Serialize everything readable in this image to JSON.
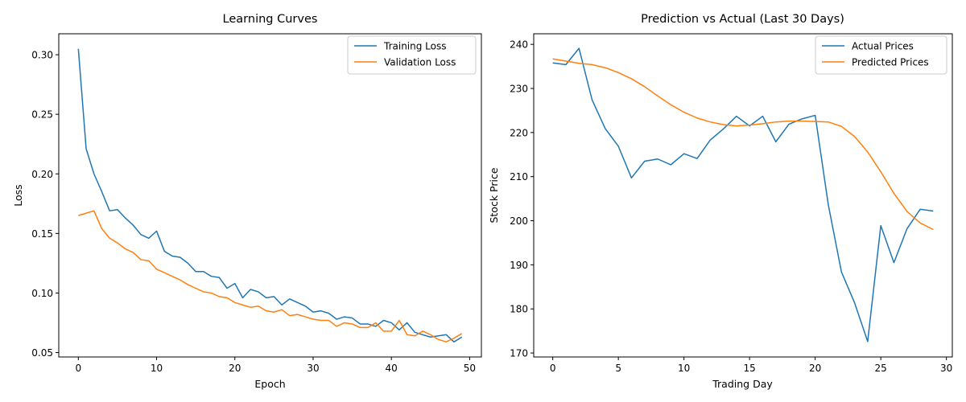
{
  "figure": {
    "background": "#ffffff"
  },
  "chart_data": [
    {
      "type": "line",
      "title": "Learning Curves",
      "xlabel": "Epoch",
      "ylabel": "Loss",
      "xlim": [
        -2.5,
        51.5
      ],
      "ylim": [
        0.0463,
        0.3176
      ],
      "xticks": [
        0,
        10,
        20,
        30,
        40,
        50
      ],
      "yticks": [
        0.05,
        0.1,
        0.15,
        0.2,
        0.25,
        0.3
      ],
      "ytick_labels": [
        "0.05",
        "0.10",
        "0.15",
        "0.20",
        "0.25",
        "0.30"
      ],
      "legend": "top-right",
      "grid": false,
      "x": [
        0,
        1,
        2,
        3,
        4,
        5,
        6,
        7,
        8,
        9,
        10,
        11,
        12,
        13,
        14,
        15,
        16,
        17,
        18,
        19,
        20,
        21,
        22,
        23,
        24,
        25,
        26,
        27,
        28,
        29,
        30,
        31,
        32,
        33,
        34,
        35,
        36,
        37,
        38,
        39,
        40,
        41,
        42,
        43,
        44,
        45,
        46,
        47,
        48,
        49
      ],
      "series": [
        {
          "name": "Training Loss",
          "color": "#1f77b4",
          "values": [
            0.305,
            0.221,
            0.2,
            0.185,
            0.169,
            0.17,
            0.163,
            0.157,
            0.149,
            0.146,
            0.152,
            0.135,
            0.131,
            0.13,
            0.125,
            0.118,
            0.118,
            0.114,
            0.113,
            0.104,
            0.108,
            0.096,
            0.103,
            0.101,
            0.096,
            0.097,
            0.09,
            0.095,
            0.092,
            0.089,
            0.084,
            0.085,
            0.083,
            0.078,
            0.08,
            0.079,
            0.074,
            0.074,
            0.072,
            0.077,
            0.075,
            0.069,
            0.075,
            0.067,
            0.065,
            0.063,
            0.064,
            0.065,
            0.059,
            0.063
          ]
        },
        {
          "name": "Validation Loss",
          "color": "#ff7f0e",
          "values": [
            0.165,
            0.167,
            0.169,
            0.154,
            0.146,
            0.142,
            0.137,
            0.134,
            0.128,
            0.127,
            0.12,
            0.117,
            0.114,
            0.111,
            0.107,
            0.104,
            0.101,
            0.1,
            0.097,
            0.096,
            0.092,
            0.09,
            0.088,
            0.089,
            0.085,
            0.084,
            0.086,
            0.081,
            0.082,
            0.08,
            0.078,
            0.077,
            0.077,
            0.072,
            0.075,
            0.074,
            0.071,
            0.071,
            0.075,
            0.068,
            0.068,
            0.077,
            0.065,
            0.064,
            0.068,
            0.065,
            0.061,
            0.059,
            0.062,
            0.066
          ]
        }
      ]
    },
    {
      "type": "line",
      "title": "Prediction vs Actual (Last 30 Days)",
      "xlabel": "Trading Day",
      "ylabel": "Stock Price",
      "xlim": [
        -1.45,
        30.45
      ],
      "ylim": [
        169.1,
        242.4
      ],
      "xticks": [
        0,
        5,
        10,
        15,
        20,
        25,
        30
      ],
      "yticks": [
        170,
        180,
        190,
        200,
        210,
        220,
        230,
        240
      ],
      "ytick_labels": [
        "170",
        "180",
        "190",
        "200",
        "210",
        "220",
        "230",
        "240"
      ],
      "legend": "top-right",
      "grid": false,
      "x": [
        0,
        1,
        2,
        3,
        4,
        5,
        6,
        7,
        8,
        9,
        10,
        11,
        12,
        13,
        14,
        15,
        16,
        17,
        18,
        19,
        20,
        21,
        22,
        23,
        24,
        25,
        26,
        27,
        28,
        29
      ],
      "series": [
        {
          "name": "Actual Prices",
          "color": "#1f77b4",
          "values": [
            235.8,
            235.4,
            239.1,
            227.4,
            220.9,
            216.9,
            209.7,
            213.5,
            214.0,
            212.7,
            215.2,
            214.1,
            218.3,
            220.8,
            223.7,
            221.5,
            223.7,
            217.9,
            221.9,
            223.1,
            223.9,
            203.6,
            188.4,
            181.4,
            172.6,
            198.9,
            190.5,
            198.2,
            202.6,
            202.2
          ]
        },
        {
          "name": "Predicted Prices",
          "color": "#ff7f0e",
          "values": [
            236.7,
            236.2,
            235.7,
            235.4,
            234.7,
            233.6,
            232.2,
            230.4,
            228.3,
            226.3,
            224.6,
            223.3,
            222.4,
            221.8,
            221.5,
            221.7,
            222.0,
            222.4,
            222.6,
            222.6,
            222.5,
            222.4,
            221.4,
            219.1,
            215.6,
            211.1,
            206.2,
            202.1,
            199.5,
            198.0
          ]
        }
      ]
    }
  ]
}
